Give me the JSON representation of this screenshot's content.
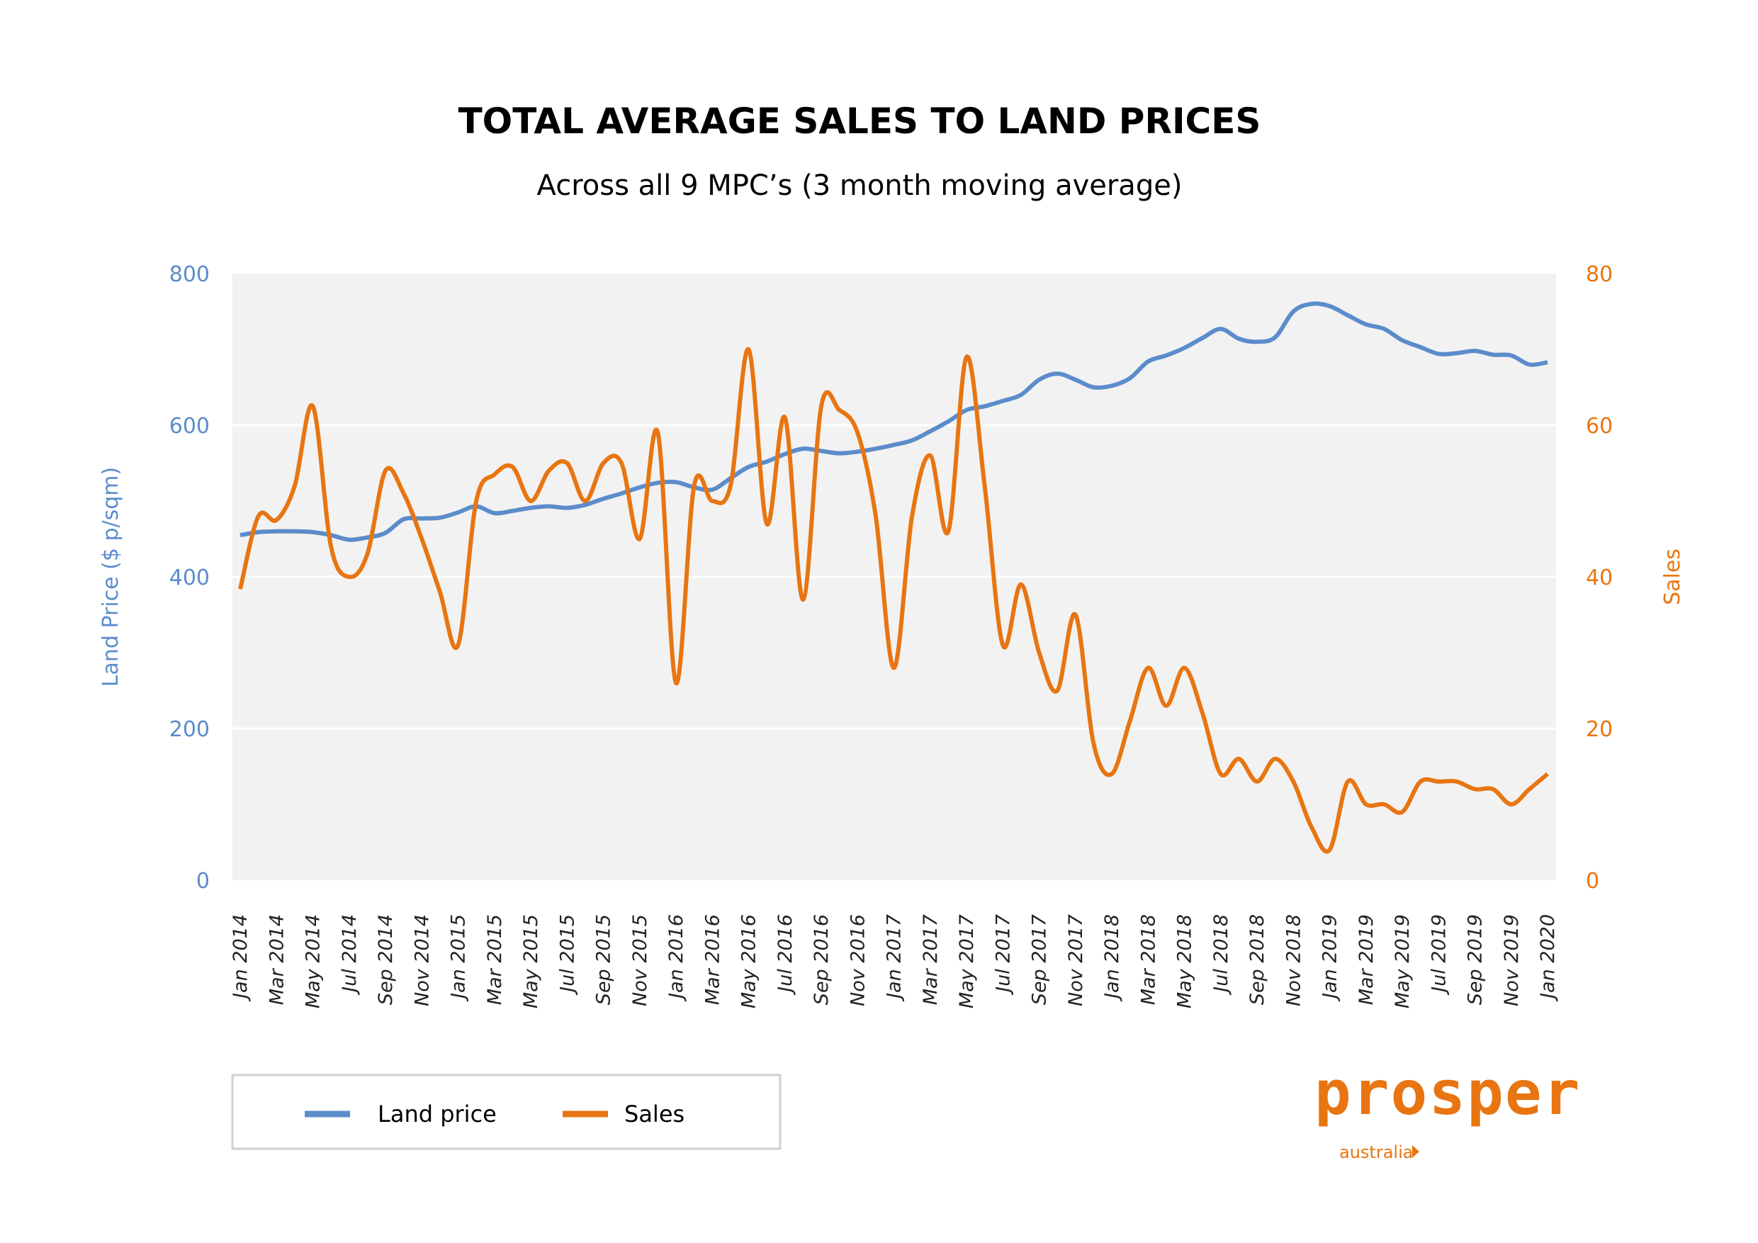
{
  "chart_data": {
    "type": "line",
    "title": "TOTAL AVERAGE SALES TO LAND PRICES",
    "subtitle": "Across all 9 MPC’s (3 month moving average)",
    "ylabel": "Land Price ($ p/sqm)",
    "ylabel_right": "Sales",
    "ylim": [
      0,
      800
    ],
    "ylim_right": [
      0,
      80
    ],
    "yticks": [
      "0",
      "200",
      "400",
      "600",
      "800"
    ],
    "yticks_right": [
      "0",
      "20",
      "40",
      "60",
      "80"
    ],
    "grid": true,
    "legend_position": "bottom-left",
    "x_tick_labels": [
      "Jan 2014",
      "Mar 2014",
      "May 2014",
      "Jul 2014",
      "Sep 2014",
      "Nov 2014",
      "Jan 2015",
      "Mar 2015",
      "May 2015",
      "Jul 2015",
      "Sep 2015",
      "Nov 2015",
      "Jan 2016",
      "Mar 2016",
      "May 2016",
      "Jul 2016",
      "Sep 2016",
      "Nov 2016",
      "Jan 2017",
      "Mar 2017",
      "May 2017",
      "Jul 2017",
      "Sep 2017",
      "Nov 2017",
      "Jan 2018",
      "Mar 2018",
      "May 2018",
      "Jul 2018",
      "Sep 2018",
      "Nov 2018",
      "Jan 2019",
      "Mar 2019",
      "May 2019",
      "Jul 2019",
      "Sep 2019",
      "Nov 2019",
      "Jan 2020"
    ],
    "series": [
      {
        "name": "Land price",
        "axis": "left",
        "color": "#5b8ccb",
        "values": [
          455,
          459,
          460,
          460,
          459,
          455,
          449,
          452,
          458,
          476,
          477,
          478,
          485,
          493,
          484,
          487,
          491,
          493,
          491,
          495,
          503,
          510,
          518,
          524,
          525,
          518,
          515,
          530,
          545,
          552,
          562,
          569,
          566,
          563,
          565,
          569,
          574,
          580,
          592,
          605,
          620,
          625,
          632,
          640,
          660,
          668,
          660,
          650,
          652,
          662,
          684,
          692,
          702,
          715,
          727,
          714,
          710,
          716,
          750,
          760,
          757,
          745,
          733,
          727,
          712,
          703,
          694,
          695,
          698,
          693,
          692,
          680,
          683
        ]
      },
      {
        "name": "Sales",
        "axis": "right",
        "color": "#e87511",
        "values": [
          38.4,
          48,
          47.5,
          52,
          62.5,
          44,
          40,
          43,
          54,
          51,
          45,
          38,
          31,
          50,
          53.5,
          54.5,
          50,
          54,
          55,
          50,
          55,
          55,
          45,
          59,
          26,
          52,
          50,
          52,
          70,
          47,
          61,
          37,
          62.5,
          62,
          59,
          48,
          28,
          48,
          56,
          46,
          69,
          52,
          31,
          39,
          30,
          25,
          35,
          18,
          14,
          21,
          28,
          23,
          28,
          22,
          14,
          16,
          13,
          16,
          13,
          7,
          4,
          13,
          10,
          10,
          9,
          13,
          13,
          13,
          12,
          12,
          10,
          12,
          14
        ]
      }
    ]
  },
  "legend": {
    "land_price": "Land price",
    "sales": "Sales"
  },
  "logo": {
    "brand": "prosper",
    "sub": "australia"
  }
}
